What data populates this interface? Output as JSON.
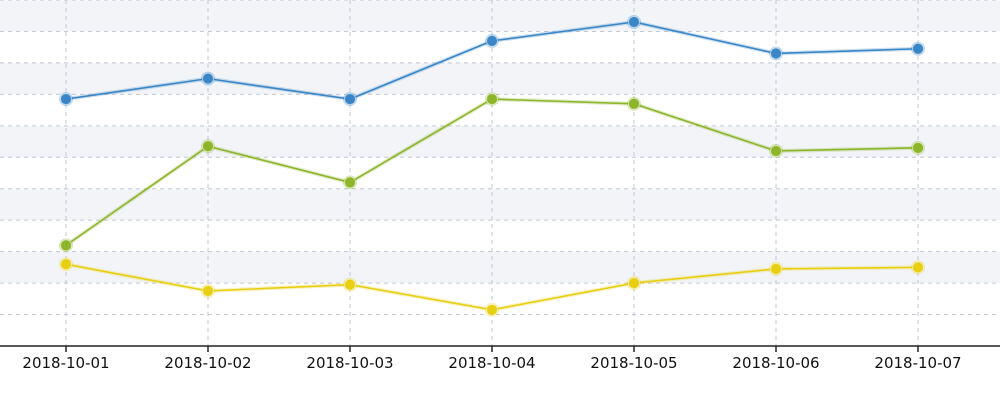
{
  "chart_data": {
    "type": "line",
    "categories": [
      "2018-10-01",
      "2018-10-02",
      "2018-10-03",
      "2018-10-04",
      "2018-10-05",
      "2018-10-06",
      "2018-10-07"
    ],
    "series": [
      {
        "color": "#3a86c6",
        "values": [
          68.5,
          75.0,
          68.5,
          87.0,
          93.0,
          83.0,
          84.5
        ]
      },
      {
        "color": "#8db52a",
        "values": [
          22.0,
          53.5,
          42.0,
          68.5,
          67.0,
          52.0,
          53.0
        ]
      },
      {
        "color": "#e8cf12",
        "values": [
          16.0,
          7.5,
          9.5,
          1.5,
          10.0,
          14.5,
          15.0
        ]
      }
    ],
    "ylim": [
      -10,
      100
    ],
    "y_ticks": [
      0,
      10,
      20,
      30,
      40,
      50,
      60,
      70,
      80,
      90,
      100
    ],
    "grid": true,
    "alternating_bands": true,
    "colors": {
      "background": "#ffffff",
      "band": "#f2f4f8",
      "grid": "#c4c7d4",
      "axis": "#222222",
      "label": "#111111"
    }
  }
}
